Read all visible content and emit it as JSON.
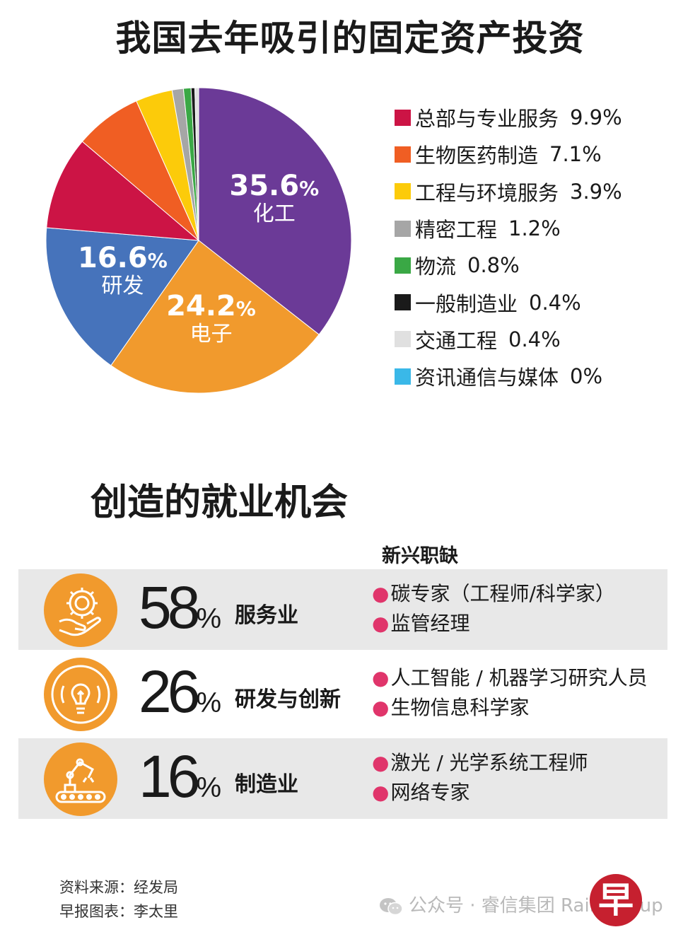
{
  "title": "我国去年吸引的固定资产投资",
  "chart_data": {
    "type": "pie",
    "title": "我国去年吸引的固定资产投资",
    "unit": "%",
    "slices": [
      {
        "label": "化工",
        "value": 35.6,
        "value_text": "35.6",
        "color": "#6b3a97",
        "show_label": true
      },
      {
        "label": "电子",
        "value": 24.2,
        "value_text": "24.2",
        "color": "#f19a2d",
        "show_label": true
      },
      {
        "label": "研发",
        "value": 16.6,
        "value_text": "16.6",
        "color": "#4673bb",
        "show_label": true
      },
      {
        "label": "总部与专业服务",
        "value": 9.9,
        "value_text": "9.9%",
        "color": "#cc1445",
        "show_label": false
      },
      {
        "label": "生物医药制造",
        "value": 7.1,
        "value_text": "7.1%",
        "color": "#f05e23",
        "show_label": false
      },
      {
        "label": "工程与环境服务",
        "value": 3.9,
        "value_text": "3.9%",
        "color": "#fccb0a",
        "show_label": false
      },
      {
        "label": "精密工程",
        "value": 1.2,
        "value_text": "1.2%",
        "color": "#a6a6a6",
        "show_label": false
      },
      {
        "label": "物流",
        "value": 0.8,
        "value_text": "0.8%",
        "color": "#3aa845",
        "show_label": false
      },
      {
        "label": "一般制造业",
        "value": 0.4,
        "value_text": "0.4%",
        "color": "#1a1a1a",
        "show_label": false
      },
      {
        "label": "交通工程",
        "value": 0.4,
        "value_text": "0.4%",
        "color": "#e0e0e0",
        "show_label": false
      },
      {
        "label": "资讯通信与媒体",
        "value": 0,
        "value_text": "0%",
        "color": "#3ab8e8",
        "show_label": false
      }
    ],
    "legend_position": "right"
  },
  "legend": [
    {
      "label": "总部与专业服务",
      "value": "9.9%",
      "color": "#cc1445"
    },
    {
      "label": "生物医药制造",
      "value": "7.1%",
      "color": "#f05e23"
    },
    {
      "label": "工程与环境服务",
      "value": "3.9%",
      "color": "#fccb0a"
    },
    {
      "label": "精密工程",
      "value": "1.2%",
      "color": "#a6a6a6"
    },
    {
      "label": "物流",
      "value": "0.8%",
      "color": "#3aa845"
    },
    {
      "label": "一般制造业",
      "value": "0.4%",
      "color": "#1a1a1a"
    },
    {
      "label": "交通工程",
      "value": "0.4%",
      "color": "#e0e0e0"
    },
    {
      "label": "资讯通信与媒体",
      "value": "0%",
      "color": "#3ab8e8"
    }
  ],
  "jobs": {
    "title": "创造的就业机会",
    "header": "新兴职缺",
    "bullet": "●",
    "percent_sign": "%",
    "rows": [
      {
        "percent": "58",
        "sector": "服务业",
        "icon": "gear-hand-icon",
        "shaded": true,
        "roles": [
          "碳专家（工程师/科学家）",
          "监管经理"
        ]
      },
      {
        "percent": "26",
        "sector": "研发与创新",
        "icon": "lightbulb-icon",
        "shaded": false,
        "roles": [
          "人工智能 / 机器学习研究人员",
          "生物信息科学家"
        ]
      },
      {
        "percent": "16",
        "sector": "制造业",
        "icon": "robot-arm-icon",
        "shaded": true,
        "roles": [
          "激光 / 光学系统工程师",
          "网络专家"
        ]
      }
    ]
  },
  "footer": {
    "source": "资料来源：经发局",
    "chart_credit": "早报图表：李太里"
  },
  "watermark": "公众号 · 睿信集团 Rain Group",
  "logo_text": "早"
}
